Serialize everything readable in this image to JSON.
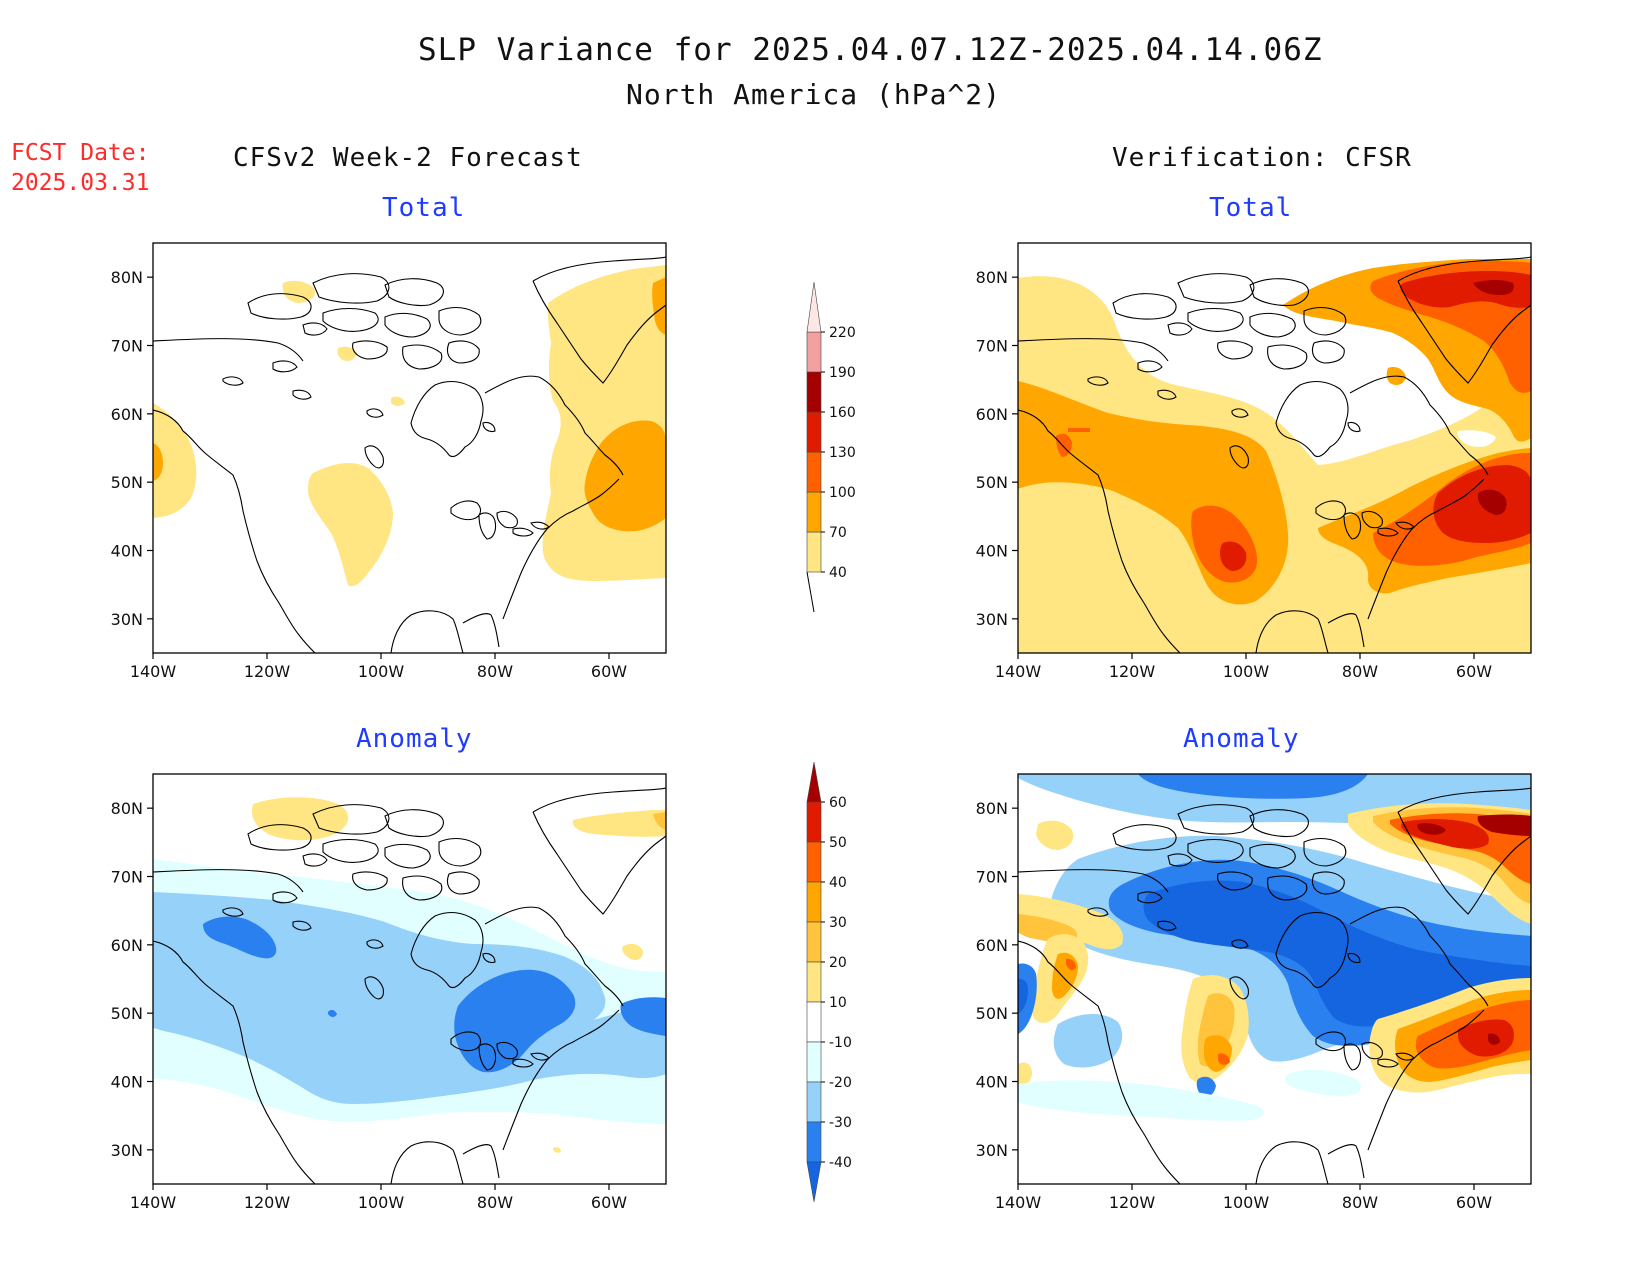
{
  "header": {
    "title": "SLP Variance for 2025.04.07.12Z-2025.04.14.06Z",
    "subtitle": "North America (hPa^2)",
    "fcst_date_label": "FCST Date:",
    "fcst_date_value": "2025.03.31"
  },
  "columns": {
    "left": "CFSv2 Week-2 Forecast",
    "right": "Verification: CFSR"
  },
  "panels": [
    {
      "title": "Total"
    },
    {
      "title": "Total"
    },
    {
      "title": "Anomaly"
    },
    {
      "title": "Anomaly"
    }
  ],
  "axes": {
    "lat_labels": [
      "30N",
      "40N",
      "50N",
      "60N",
      "70N",
      "80N"
    ],
    "lon_labels": [
      "140W",
      "120W",
      "100W",
      "80W",
      "60W"
    ],
    "lat_values": [
      30,
      40,
      50,
      60,
      70,
      80
    ],
    "lon_values": [
      -140,
      -120,
      -100,
      -80,
      -60
    ],
    "lat_range": [
      25,
      85
    ],
    "lon_range": [
      -140,
      -50
    ]
  },
  "total_colorbar": {
    "labels": [
      "40",
      "70",
      "100",
      "130",
      "160",
      "190",
      "220"
    ],
    "colors": [
      "#ffe682",
      "#ffa600",
      "#ff6100",
      "#e11b00",
      "#a40000",
      "#f5a0a0",
      "#fde6e6"
    ]
  },
  "anomaly_colorbar": {
    "labels": [
      "-40",
      "-30",
      "-20",
      "-10",
      "10",
      "20",
      "30",
      "40",
      "50",
      "60"
    ],
    "colors": [
      "#1565e0",
      "#2a80ef",
      "#96d1fa",
      "#e1ffff",
      "#ffffff",
      "#ffe682",
      "#ffc33c",
      "#ffa600",
      "#ff6100",
      "#e11b00",
      "#a40000"
    ]
  },
  "colors": {
    "title_text": "#111111",
    "fcst_text": "#ff2a2a",
    "panel_title": "#1f3bff",
    "coastline": "#000000"
  }
}
